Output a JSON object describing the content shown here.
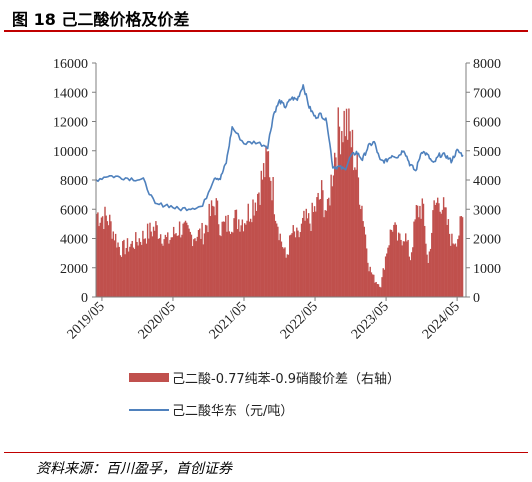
{
  "figure": {
    "title": "图 18 己二酸价格及价差",
    "source": "资料来源：百川盈孚，首创证券"
  },
  "chart_data": {
    "type": "line+area",
    "x_ticks": [
      "2019/05",
      "2020/05",
      "2021/05",
      "2022/05",
      "2023/05",
      "2024/05"
    ],
    "left_axis": {
      "ylim": [
        0,
        16000
      ],
      "ticks": [
        0,
        2000,
        4000,
        6000,
        8000,
        10000,
        12000,
        14000,
        16000
      ]
    },
    "right_axis": {
      "ylim": [
        0,
        8000
      ],
      "ticks": [
        0,
        1000,
        2000,
        3000,
        4000,
        5000,
        6000,
        7000,
        8000
      ]
    },
    "legend_position": "bottom",
    "series": [
      {
        "name": "己二酸-0.77纯苯-0.9硝酸价差（右轴）",
        "type": "area",
        "axis": "right",
        "color": "#c0504d",
        "x": [
          "2019/04",
          "2019/06",
          "2019/08",
          "2019/10",
          "2019/12",
          "2020/02",
          "2020/04",
          "2020/06",
          "2020/08",
          "2020/10",
          "2020/12",
          "2021/01",
          "2021/02",
          "2021/03",
          "2021/05",
          "2021/07",
          "2021/09",
          "2021/10",
          "2021/11",
          "2021/12",
          "2022/01",
          "2022/02",
          "2022/03",
          "2022/04",
          "2022/05",
          "2022/06",
          "2022/07",
          "2022/08",
          "2022/09",
          "2022/10",
          "2022/11",
          "2022/12",
          "2023/01",
          "2023/02",
          "2023/03",
          "2023/04",
          "2023/05",
          "2023/06",
          "2023/07",
          "2023/08",
          "2023/09",
          "2023/10",
          "2023/11",
          "2023/12",
          "2024/01",
          "2024/02",
          "2024/03",
          "2024/04",
          "2024/05",
          "2024/06"
        ],
        "values": [
          3000,
          2800,
          1700,
          1900,
          2200,
          2500,
          2000,
          2500,
          2200,
          2300,
          3400,
          2500,
          2600,
          2800,
          2800,
          3600,
          5000,
          3500,
          2200,
          1400,
          2300,
          2100,
          2700,
          2700,
          3200,
          3700,
          3000,
          4900,
          6100,
          6400,
          5600,
          4500,
          3000,
          1100,
          600,
          400,
          1700,
          2600,
          2000,
          2300,
          1400,
          3000,
          3300,
          1200,
          3200,
          3600,
          2800,
          2000,
          2200,
          2900
        ]
      },
      {
        "name": "己二酸华东（元/吨）",
        "type": "line",
        "axis": "left",
        "color": "#4f81bd",
        "x": [
          "2019/04",
          "2019/06",
          "2019/08",
          "2019/10",
          "2019/12",
          "2020/02",
          "2020/04",
          "2020/06",
          "2020/08",
          "2020/10",
          "2020/12",
          "2021/01",
          "2021/02",
          "2021/03",
          "2021/05",
          "2021/07",
          "2021/09",
          "2021/10",
          "2021/11",
          "2021/12",
          "2022/01",
          "2022/02",
          "2022/03",
          "2022/04",
          "2022/05",
          "2022/06",
          "2022/07",
          "2022/08",
          "2022/09",
          "2022/10",
          "2022/11",
          "2022/12",
          "2023/01",
          "2023/02",
          "2023/03",
          "2023/04",
          "2023/05",
          "2023/06",
          "2023/07",
          "2023/08",
          "2023/09",
          "2023/10",
          "2023/11",
          "2023/12",
          "2024/01",
          "2024/02",
          "2024/03",
          "2024/04",
          "2024/05",
          "2024/06"
        ],
        "values": [
          8000,
          8300,
          8200,
          8100,
          8000,
          6300,
          6300,
          6000,
          6100,
          6200,
          8200,
          8100,
          9200,
          11600,
          10500,
          10600,
          10300,
          12500,
          13400,
          13000,
          13600,
          13500,
          14500,
          13000,
          12300,
          12500,
          12000,
          8900,
          8900,
          8700,
          9600,
          9900,
          9400,
          10300,
          10600,
          9300,
          9300,
          9700,
          9600,
          10100,
          9100,
          8600,
          10000,
          9700,
          9100,
          9700,
          9700,
          9300,
          10000,
          9700
        ]
      }
    ]
  }
}
